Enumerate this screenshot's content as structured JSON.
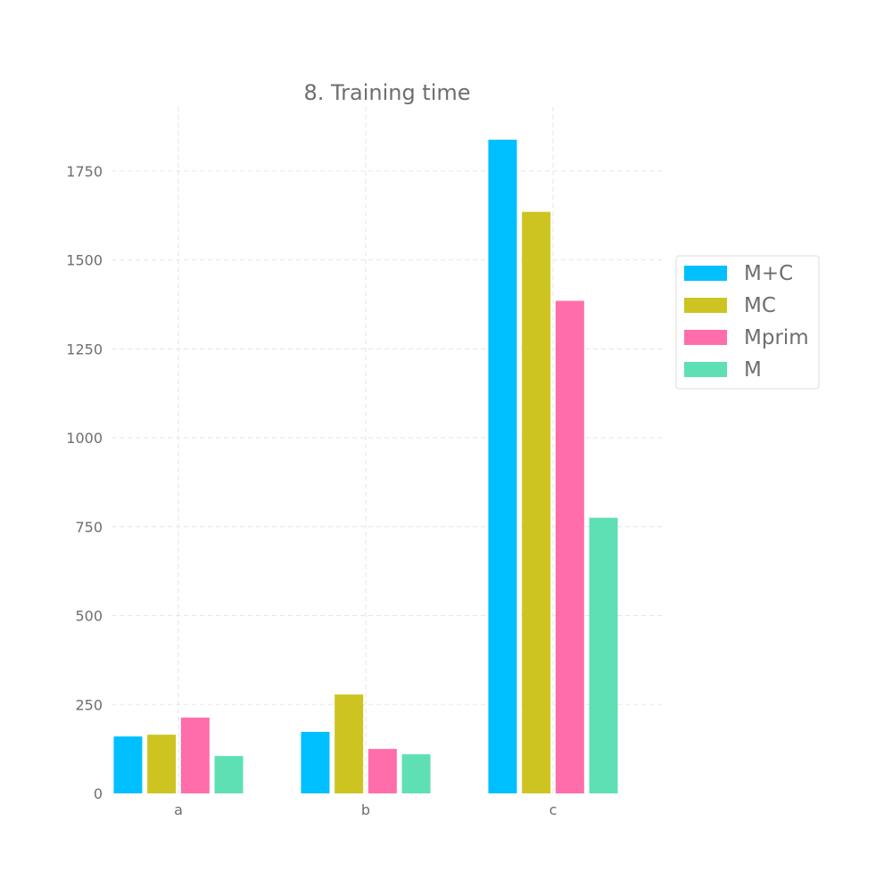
{
  "chart_data": {
    "type": "bar",
    "title": "8. Training time",
    "xlabel": "",
    "ylabel": "",
    "categories": [
      "a",
      "b",
      "c"
    ],
    "series": [
      {
        "name": "M+C",
        "color": "#00bfff",
        "values": [
          160,
          173,
          1838
        ]
      },
      {
        "name": "MC",
        "color": "#cdc421",
        "values": [
          165,
          278,
          1635
        ]
      },
      {
        "name": "Mprim",
        "color": "#ff6eaa",
        "values": [
          213,
          125,
          1385
        ]
      },
      {
        "name": "M",
        "color": "#5ee0b4",
        "values": [
          105,
          110,
          775
        ]
      }
    ],
    "ylim": [
      0,
      1930
    ],
    "yticks": [
      0,
      250,
      500,
      750,
      1000,
      1250,
      1500,
      1750
    ],
    "ytick_labels": [
      "0",
      "250",
      "500",
      "750",
      "1000",
      "1250",
      "1500",
      "1750"
    ],
    "grid": true,
    "legend_position": "right"
  }
}
